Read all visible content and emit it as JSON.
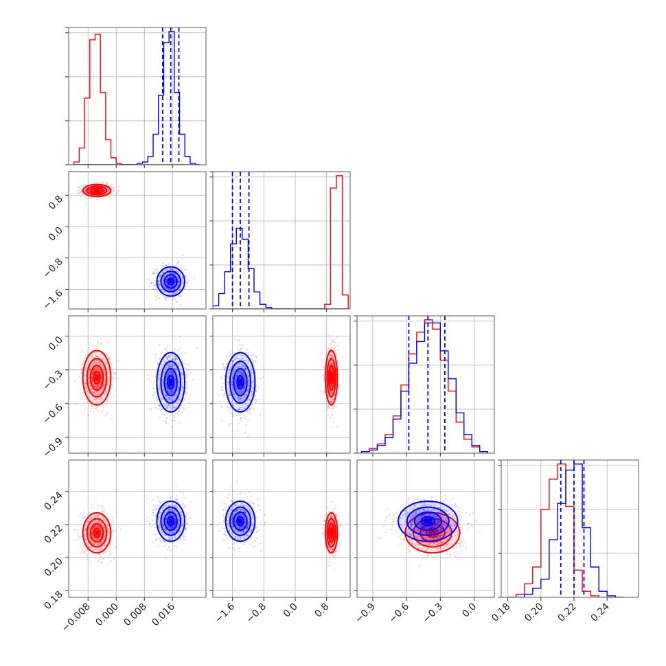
{
  "chart_data": {
    "type": "corner",
    "grid": true,
    "parameters": [
      {
        "ticks": [
          -0.008,
          0.0,
          0.008,
          0.016
        ],
        "tick_labels": [
          "−0.008",
          "0.000",
          "0.008",
          "0.016"
        ],
        "range": [
          -0.0135,
          0.0255
        ]
      },
      {
        "ticks": [
          -1.6,
          -0.8,
          0.0,
          0.8
        ],
        "tick_labels": [
          "−1.6",
          "−0.8",
          "0.0",
          "0.8"
        ],
        "range": [
          -2.1,
          1.4
        ]
      },
      {
        "ticks": [
          -0.9,
          -0.6,
          -0.3,
          0.0
        ],
        "tick_labels": [
          "−0.9",
          "−0.6",
          "−0.3",
          "0.0"
        ],
        "range": [
          -1.04,
          0.18
        ]
      },
      {
        "ticks": [
          0.18,
          0.2,
          0.22,
          0.24
        ],
        "tick_labels": [
          "0.18",
          "0.20",
          "0.22",
          "0.24"
        ],
        "range": [
          0.176,
          0.259
        ]
      }
    ],
    "series": [
      {
        "color": "#ff0000",
        "mean": [
          -0.0055,
          0.92,
          -0.37,
          0.215
        ],
        "std": [
          0.0018,
          0.07,
          0.11,
          0.0055
        ]
      },
      {
        "color": "#0000ff",
        "mean": [
          0.0155,
          -1.4,
          -0.41,
          0.222
        ],
        "std": [
          0.0018,
          0.17,
          0.12,
          0.0055
        ]
      }
    ],
    "quantile_series_index": 1,
    "quantiles": [
      [
        0.0132,
        0.0155,
        0.0178
      ],
      [
        -1.6,
        -1.4,
        -1.18
      ],
      [
        -0.58,
        -0.41,
        -0.26
      ],
      [
        0.212,
        0.22,
        0.226
      ]
    ],
    "histograms": [
      {
        "edges": [
          -0.012,
          -0.0105,
          -0.009,
          -0.0075,
          -0.006,
          -0.0045,
          -0.003,
          -0.0015,
          0.0,
          0.0015,
          0.003,
          0.0045,
          0.006,
          0.0075,
          0.009,
          0.0105,
          0.012,
          0.0135,
          0.015,
          0.0165,
          0.018,
          0.0195,
          0.021,
          0.0225,
          0.024
        ],
        "counts": [
          [
            2,
            12,
            48,
            90,
            94,
            52,
            18,
            5,
            1,
            0,
            0,
            0,
            0,
            0,
            0,
            0,
            0,
            0,
            0,
            0,
            0,
            0,
            0,
            0
          ],
          [
            0,
            0,
            0,
            0,
            0,
            0,
            0,
            0,
            0,
            0,
            0,
            0,
            1,
            2,
            6,
            22,
            50,
            88,
            96,
            52,
            22,
            6,
            1,
            0
          ]
        ]
      },
      {
        "edges": [
          -2.1,
          -1.95,
          -1.8,
          -1.65,
          -1.5,
          -1.35,
          -1.2,
          -1.05,
          -0.9,
          -0.75,
          -0.6,
          -0.45,
          -0.3,
          -0.15,
          0.0,
          0.15,
          0.3,
          0.45,
          0.6,
          0.75,
          0.9,
          1.05,
          1.2,
          1.35
        ],
        "counts": [
          [
            0,
            0,
            0,
            0,
            0,
            0,
            0,
            0,
            0,
            0,
            0,
            0,
            0,
            0,
            0,
            0,
            0,
            0,
            0,
            3,
            78,
            86,
            9,
            0
          ],
          [
            2,
            10,
            24,
            42,
            52,
            45,
            26,
            11,
            3,
            1,
            0,
            0,
            0,
            0,
            0,
            0,
            0,
            0,
            0,
            0,
            0,
            0,
            0,
            0
          ]
        ]
      },
      {
        "edges": [
          -1.0,
          -0.93,
          -0.86,
          -0.79,
          -0.72,
          -0.65,
          -0.58,
          -0.51,
          -0.44,
          -0.37,
          -0.3,
          -0.23,
          -0.16,
          -0.09,
          -0.02,
          0.05,
          0.12
        ],
        "counts": [
          [
            1,
            3,
            6,
            12,
            24,
            44,
            64,
            78,
            86,
            80,
            60,
            40,
            20,
            9,
            4,
            1
          ],
          [
            1,
            2,
            5,
            10,
            22,
            40,
            58,
            72,
            84,
            84,
            66,
            48,
            26,
            12,
            5,
            1
          ]
        ]
      },
      {
        "edges": [
          0.18,
          0.185,
          0.19,
          0.195,
          0.2,
          0.205,
          0.21,
          0.215,
          0.22,
          0.225,
          0.23,
          0.235,
          0.24,
          0.245,
          0.25
        ],
        "counts": [
          [
            0,
            2,
            9,
            20,
            58,
            78,
            88,
            60,
            18,
            4,
            1,
            0,
            0,
            0
          ],
          [
            0,
            0,
            2,
            6,
            12,
            38,
            62,
            84,
            88,
            46,
            20,
            4,
            1,
            0
          ]
        ]
      }
    ]
  }
}
